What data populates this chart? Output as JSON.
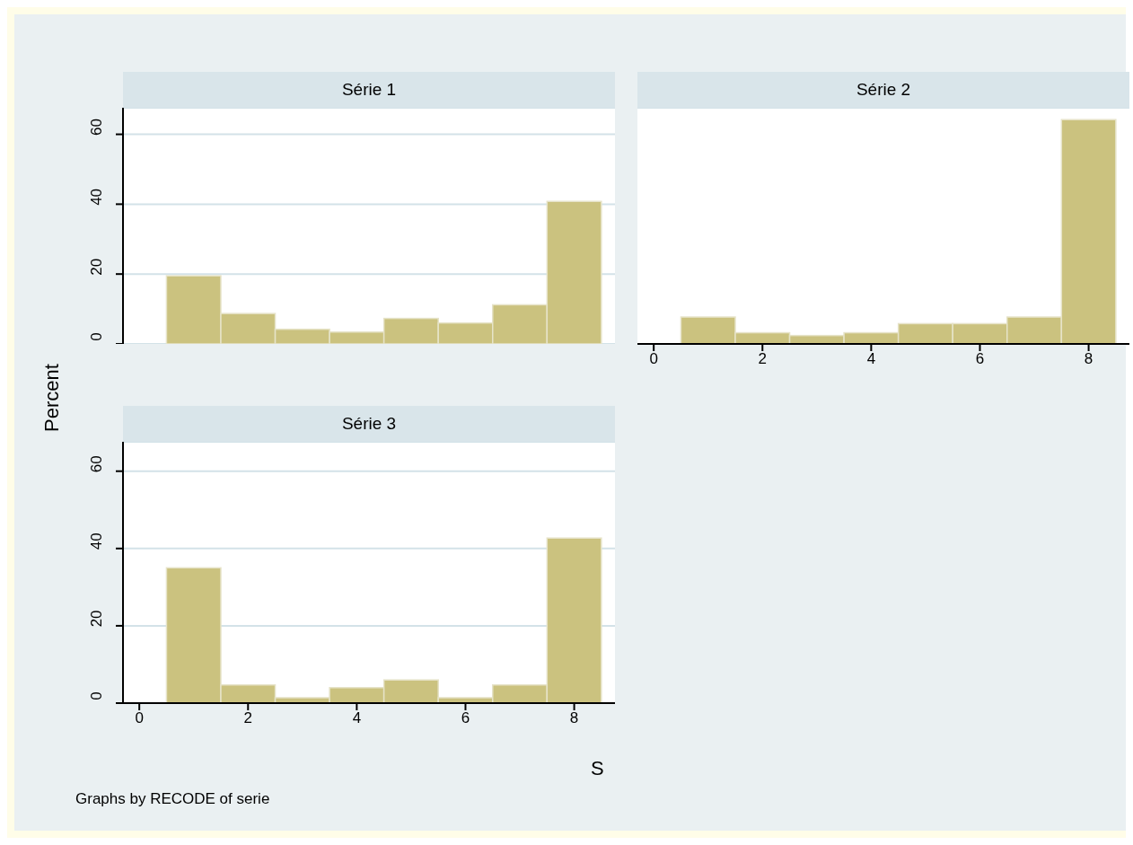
{
  "chart_data": [
    {
      "type": "histogram",
      "title": "Série 1",
      "ylabel": "Percent",
      "bins": [
        0.5,
        1.5,
        2.5,
        3.5,
        4.5,
        5.5,
        6.5,
        7.5,
        8.5
      ],
      "values": [
        19.5,
        8.7,
        4.2,
        3.4,
        7.3,
        6.0,
        11.2,
        40.8
      ],
      "color": "#cbc27f",
      "xlim": [
        -0.3,
        8.75
      ],
      "ylim": [
        0,
        67.6
      ],
      "xticks": [
        0,
        2,
        4,
        6,
        8
      ],
      "yticks": [
        0,
        20,
        40,
        60
      ],
      "grid": "y",
      "tick_labels": "y"
    },
    {
      "type": "histogram",
      "title": "Série 2",
      "bins": [
        0.5,
        1.5,
        2.5,
        3.5,
        4.5,
        5.5,
        6.5,
        7.5,
        8.5
      ],
      "values": [
        7.7,
        3.2,
        2.4,
        3.2,
        5.8,
        5.8,
        7.7,
        64.2
      ],
      "color": "#cbc27f",
      "xlim": [
        -0.3,
        8.75
      ],
      "ylim": [
        0,
        67.6
      ],
      "xticks": [
        0,
        2,
        4,
        6,
        8
      ],
      "yticks": [
        0,
        20,
        40,
        60
      ],
      "grid": "y",
      "tick_labels": "x"
    },
    {
      "type": "histogram",
      "title": "Série 3",
      "xlabel": "S",
      "annotations": [
        "Graphs by RECODE of serie"
      ],
      "bins": [
        0.5,
        1.5,
        2.5,
        3.5,
        4.5,
        5.5,
        6.5,
        7.5,
        8.5
      ],
      "values": [
        35.0,
        4.7,
        1.4,
        4.0,
        6.0,
        1.4,
        4.7,
        42.7
      ],
      "color": "#cbc27f",
      "xlim": [
        -0.3,
        8.75
      ],
      "ylim": [
        0,
        67.6
      ],
      "xticks": [
        0,
        2,
        4,
        6,
        8
      ],
      "yticks": [
        0,
        20,
        40,
        60
      ],
      "grid": "y"
    }
  ]
}
